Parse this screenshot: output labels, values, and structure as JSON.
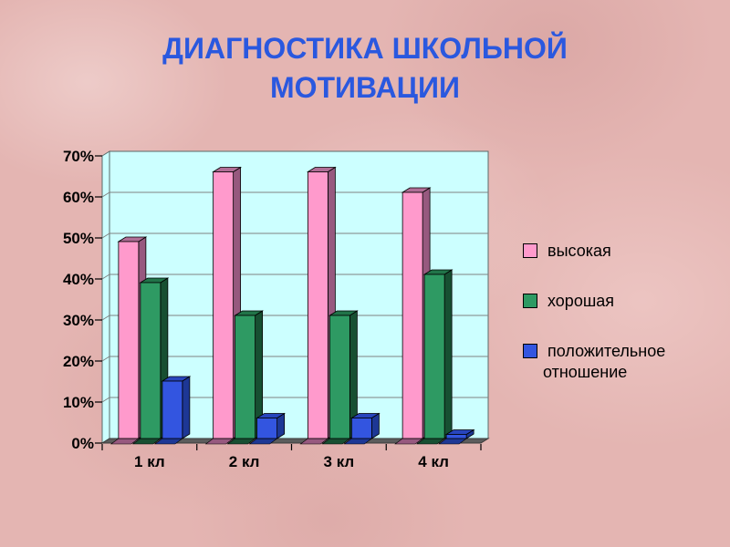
{
  "slide": {
    "title_line1": "ДИАГНОСТИКА ШКОЛЬНОЙ",
    "title_line2": "МОТИВАЦИИ",
    "title_color": "#2a58df",
    "background_color": "#e4b5b2"
  },
  "chart_data": {
    "type": "bar",
    "style": "3d-column",
    "title": "",
    "xlabel": "",
    "ylabel": "",
    "categories": [
      "1 кл",
      "2 кл",
      "3 кл",
      "4 кл"
    ],
    "series": [
      {
        "name": "высокая",
        "values": [
          48,
          65,
          65,
          60
        ],
        "color": "#ff9acc",
        "color_side": "#97597f",
        "color_top": "#b06e96"
      },
      {
        "name": "хорошая",
        "values": [
          38,
          30,
          30,
          40
        ],
        "color": "#2e9a63",
        "color_side": "#174f32",
        "color_top": "#217449"
      },
      {
        "name": "положительное отношение",
        "values": [
          14,
          5,
          5,
          1
        ],
        "color": "#3355e0",
        "color_side": "#1d3795",
        "color_top": "#2845bd"
      }
    ],
    "ylim": [
      0,
      70
    ],
    "ytick_step": 10,
    "ytick_labels": [
      "0%",
      "10%",
      "20%",
      "30%",
      "40%",
      "50%",
      "60%",
      "70%"
    ],
    "grid": true,
    "plot_bg": "#ccffff",
    "gridline_color": "#808080",
    "wall_border_color": "#5a6a6a",
    "floor_color": "#5c5c5c",
    "legend_position": "right"
  }
}
